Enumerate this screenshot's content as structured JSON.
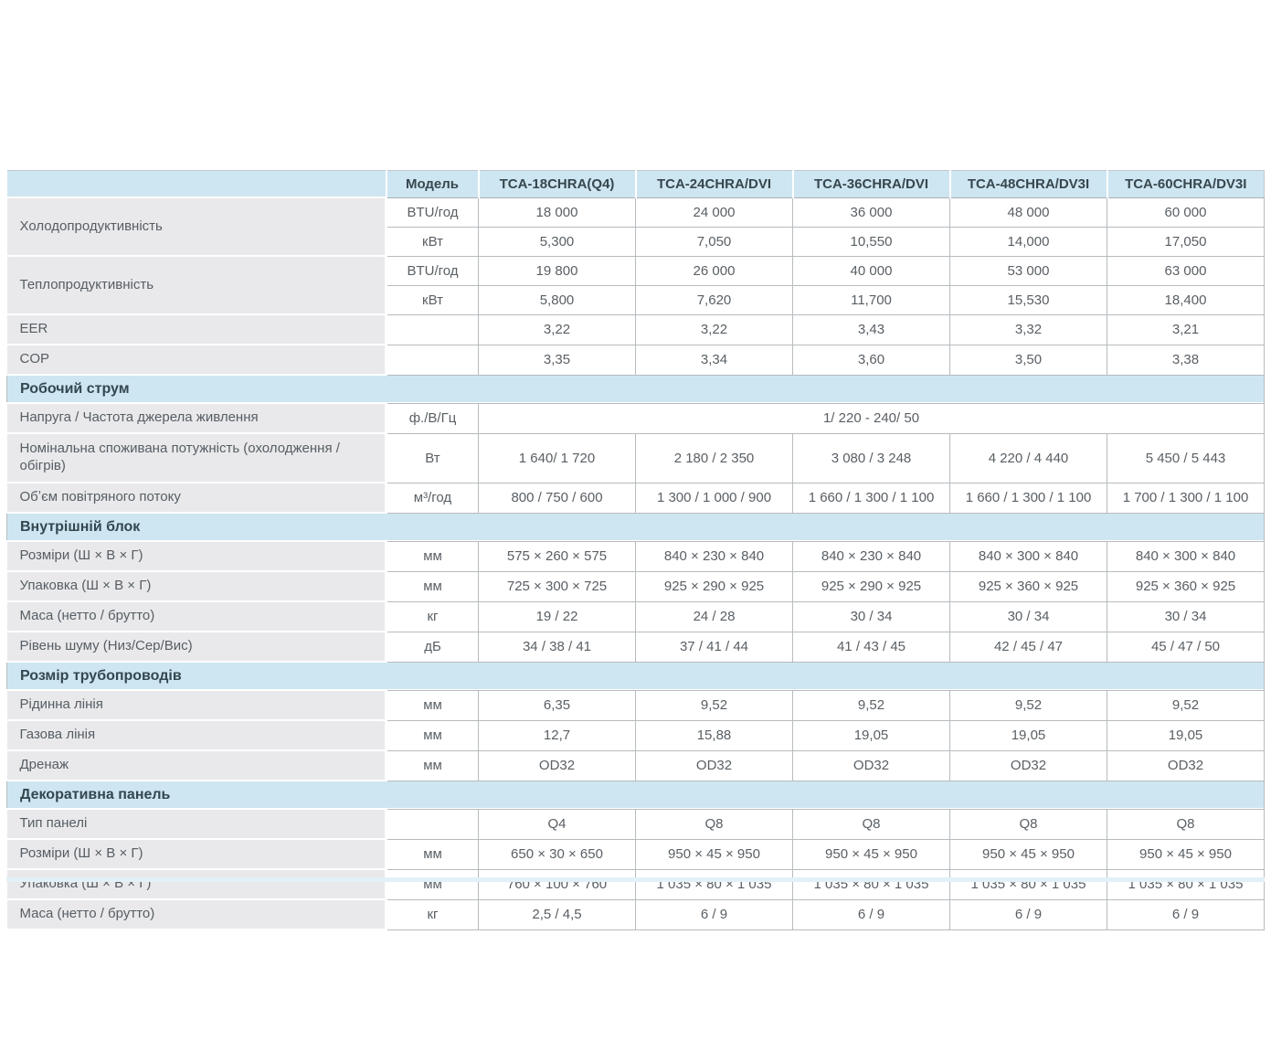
{
  "colors": {
    "band_blue": "#cee6f1",
    "label_gray": "#e9e9eb",
    "border_gray": "#b6bbbe",
    "heading_text": "#37474f",
    "body_text": "#595f64",
    "bottom_accent": "#e2f0f7"
  },
  "table": {
    "model_label": "Модель",
    "models": [
      "TCA-18CHRA(Q4)",
      "TCA-24CHRA/DVI",
      "TCA-36CHRA/DVI",
      "TCA-48CHRA/DV3I",
      "TCA-60CHRA/DV3I"
    ],
    "rows": [
      {
        "type": "data",
        "label": "Холодопродуктивність",
        "rowspan": 2,
        "unit": "BTU/год",
        "values": [
          "18 000",
          "24 000",
          "36 000",
          "48 000",
          "60 000"
        ]
      },
      {
        "type": "data",
        "cont": true,
        "unit": "кВт",
        "values": [
          "5,300",
          "7,050",
          "10,550",
          "14,000",
          "17,050"
        ]
      },
      {
        "type": "data",
        "label": "Теплопродуктивність",
        "rowspan": 2,
        "unit": "BTU/год",
        "values": [
          "19 800",
          "26 000",
          "40 000",
          "53 000",
          "63 000"
        ]
      },
      {
        "type": "data",
        "cont": true,
        "unit": "кВт",
        "values": [
          "5,800",
          "7,620",
          "11,700",
          "15,530",
          "18,400"
        ]
      },
      {
        "type": "data",
        "label": "EER",
        "unit": "",
        "values": [
          "3,22",
          "3,22",
          "3,43",
          "3,32",
          "3,21"
        ]
      },
      {
        "type": "data",
        "label": "COP",
        "unit": "",
        "values": [
          "3,35",
          "3,34",
          "3,60",
          "3,50",
          "3,38"
        ]
      },
      {
        "type": "section",
        "label": "Робочий струм"
      },
      {
        "type": "data",
        "label": "Напруга / Частота джерела живлення",
        "unit": "ф./В/Гц",
        "span_value": "1/ 220 - 240/ 50"
      },
      {
        "type": "data",
        "tall": true,
        "label": "Номінальна  споживана потужність (охолодження / обігрів)",
        "unit": "Вт",
        "values": [
          "1 640/ 1 720",
          "2 180 / 2 350",
          "3 080 / 3 248",
          "4 220 / 4 440",
          "5 450 / 5 443"
        ]
      },
      {
        "type": "data",
        "label": "Обʼєм повітряного потоку",
        "unit": "м³/год",
        "values": [
          "800 / 750 / 600",
          "1 300 / 1 000 / 900",
          "1 660 / 1 300 / 1 100",
          "1 660 / 1 300 / 1 100",
          "1 700 / 1 300 / 1 100"
        ]
      },
      {
        "type": "section",
        "label": "Внутрішній блок"
      },
      {
        "type": "data",
        "label": "Розміри (Ш × В × Г)",
        "unit": "мм",
        "values": [
          "575 × 260 × 575",
          "840 × 230 × 840",
          "840 × 230 × 840",
          "840 × 300 × 840",
          "840 × 300 × 840"
        ]
      },
      {
        "type": "data",
        "label": "Упаковка (Ш × В × Г)",
        "unit": "мм",
        "values": [
          "725 × 300 × 725",
          "925 × 290 × 925",
          "925 × 290 × 925",
          "925 × 360 × 925",
          "925 × 360 × 925"
        ]
      },
      {
        "type": "data",
        "label": "Маса (нетто / брутто)",
        "unit": "кг",
        "values": [
          "19 / 22",
          "24 / 28",
          "30 / 34",
          "30 / 34",
          "30 / 34"
        ]
      },
      {
        "type": "data",
        "label": "Рівень шуму (Низ/Сер/Вис)",
        "unit": "дБ",
        "values": [
          "34 / 38 / 41",
          "37 / 41 / 44",
          "41 / 43 / 45",
          "42 / 45 / 47",
          "45 / 47 / 50"
        ]
      },
      {
        "type": "section",
        "label": "Розмір трубопроводів"
      },
      {
        "type": "data",
        "label": "Рідинна лінія",
        "unit": "мм",
        "values": [
          "6,35",
          "9,52",
          "9,52",
          "9,52",
          "9,52"
        ]
      },
      {
        "type": "data",
        "label": "Газова лінія",
        "unit": "мм",
        "values": [
          "12,7",
          "15,88",
          "19,05",
          "19,05",
          "19,05"
        ]
      },
      {
        "type": "data",
        "label": "Дренаж",
        "unit": "мм",
        "values": [
          "OD32",
          "OD32",
          "OD32",
          "OD32",
          "OD32"
        ]
      },
      {
        "type": "section",
        "label": "Декоративна панель"
      },
      {
        "type": "data",
        "label": "Тип панелі",
        "unit": "",
        "values": [
          "Q4",
          "Q8",
          "Q8",
          "Q8",
          "Q8"
        ]
      },
      {
        "type": "data",
        "label": "Розміри (Ш × В × Г)",
        "unit": "мм",
        "values": [
          "650 × 30 × 650",
          "950 × 45 × 950",
          "950 × 45 × 950",
          "950 × 45 × 950",
          "950 × 45 × 950"
        ]
      },
      {
        "type": "data",
        "label": "Упаковка (Ш × В × Г)",
        "unit": "мм",
        "values": [
          "760 × 100 × 760",
          "1 035 × 80 × 1 035",
          "1 035 × 80 × 1 035",
          "1 035 × 80 × 1 035",
          "1 035 × 80 × 1 035"
        ]
      },
      {
        "type": "data",
        "label": "Маса (нетто / брутто)",
        "unit": "кг",
        "values": [
          "2,5 / 4,5",
          "6 / 9",
          "6 / 9",
          "6 / 9",
          "6 / 9"
        ]
      }
    ]
  }
}
